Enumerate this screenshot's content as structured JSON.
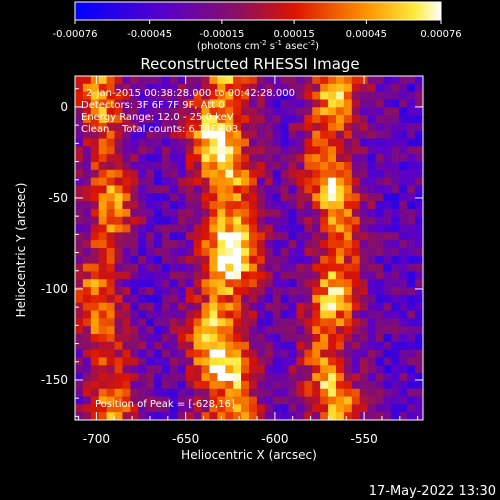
{
  "colorbar": {
    "ticks": [
      "-0.00076",
      "-0.00045",
      "-0.00015",
      "0.00015",
      "0.00045",
      "0.00076"
    ],
    "tick_values": [
      -0.00076,
      -0.00045,
      -0.00015,
      0.00015,
      0.00045,
      0.00076
    ],
    "range": [
      -0.00076,
      0.00076
    ],
    "units_label": "(photons cm",
    "units_exp1": "-2",
    "units_mid": " s",
    "units_exp2": "-1",
    "units_mid2": " asec",
    "units_exp3": "-2",
    "units_close": ")",
    "colormap": "blue-purple-red-orange-yellow-white"
  },
  "title": "Reconstructed RHESSI Image",
  "annotations": {
    "time_range": "2-Jan-2015 00:38:28.000 to 00:42:28.000",
    "detectors": "Detectors: 3F 6F 7F 9F, Att 0",
    "energy": "Energy Range: 12.0 - 25.0 keV",
    "algorithm": "Clean",
    "counts": "Total counts: 6.13E+03",
    "peak": "Position of Peak = [-628,16]"
  },
  "footer_timestamp": "17-May-2022 13:30",
  "chart_data": {
    "type": "heatmap",
    "title": "Reconstructed RHESSI Image",
    "xlabel": "Heliocentric X (arcsec)",
    "ylabel": "Heliocentric Y (arcsec)",
    "xlim": [
      -712,
      -517
    ],
    "ylim": [
      -172,
      17
    ],
    "xticks": [
      -700,
      -650,
      -600,
      -550
    ],
    "xtick_labels": [
      "-700",
      "-650",
      "-600",
      "-550"
    ],
    "yticks": [
      0,
      -50,
      -100,
      -150
    ],
    "ytick_labels": [
      "0",
      "-50",
      "-100",
      "-150"
    ],
    "value_range": [
      -0.00076,
      0.00076
    ],
    "peak_position": [
      -628,
      16
    ],
    "bands": [
      {
        "x_center": -695,
        "width": 18,
        "amplitude": 0.7
      },
      {
        "x_center": -628,
        "width": 22,
        "amplitude": 1.0
      },
      {
        "x_center": -567,
        "width": 19,
        "amplitude": 0.82
      }
    ]
  }
}
